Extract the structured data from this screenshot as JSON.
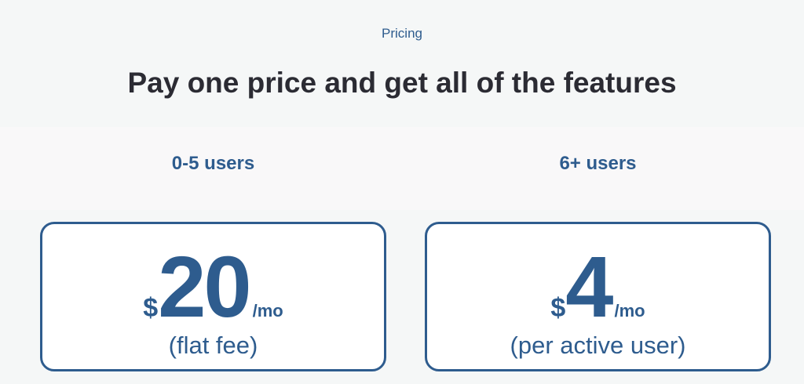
{
  "header": {
    "eyebrow": "Pricing",
    "title": "Pay one price and get all of the features"
  },
  "plans": [
    {
      "tier": "0-5 users",
      "currency": "$",
      "amount": "20",
      "period": "/mo",
      "note": "(flat fee)"
    },
    {
      "tier": "6+ users",
      "currency": "$",
      "amount": "4",
      "period": "/mo",
      "note": "(per active user)"
    }
  ],
  "colors": {
    "accent": "#2e5c8e",
    "heading": "#2b2b33",
    "background": "#f5f7f7"
  }
}
